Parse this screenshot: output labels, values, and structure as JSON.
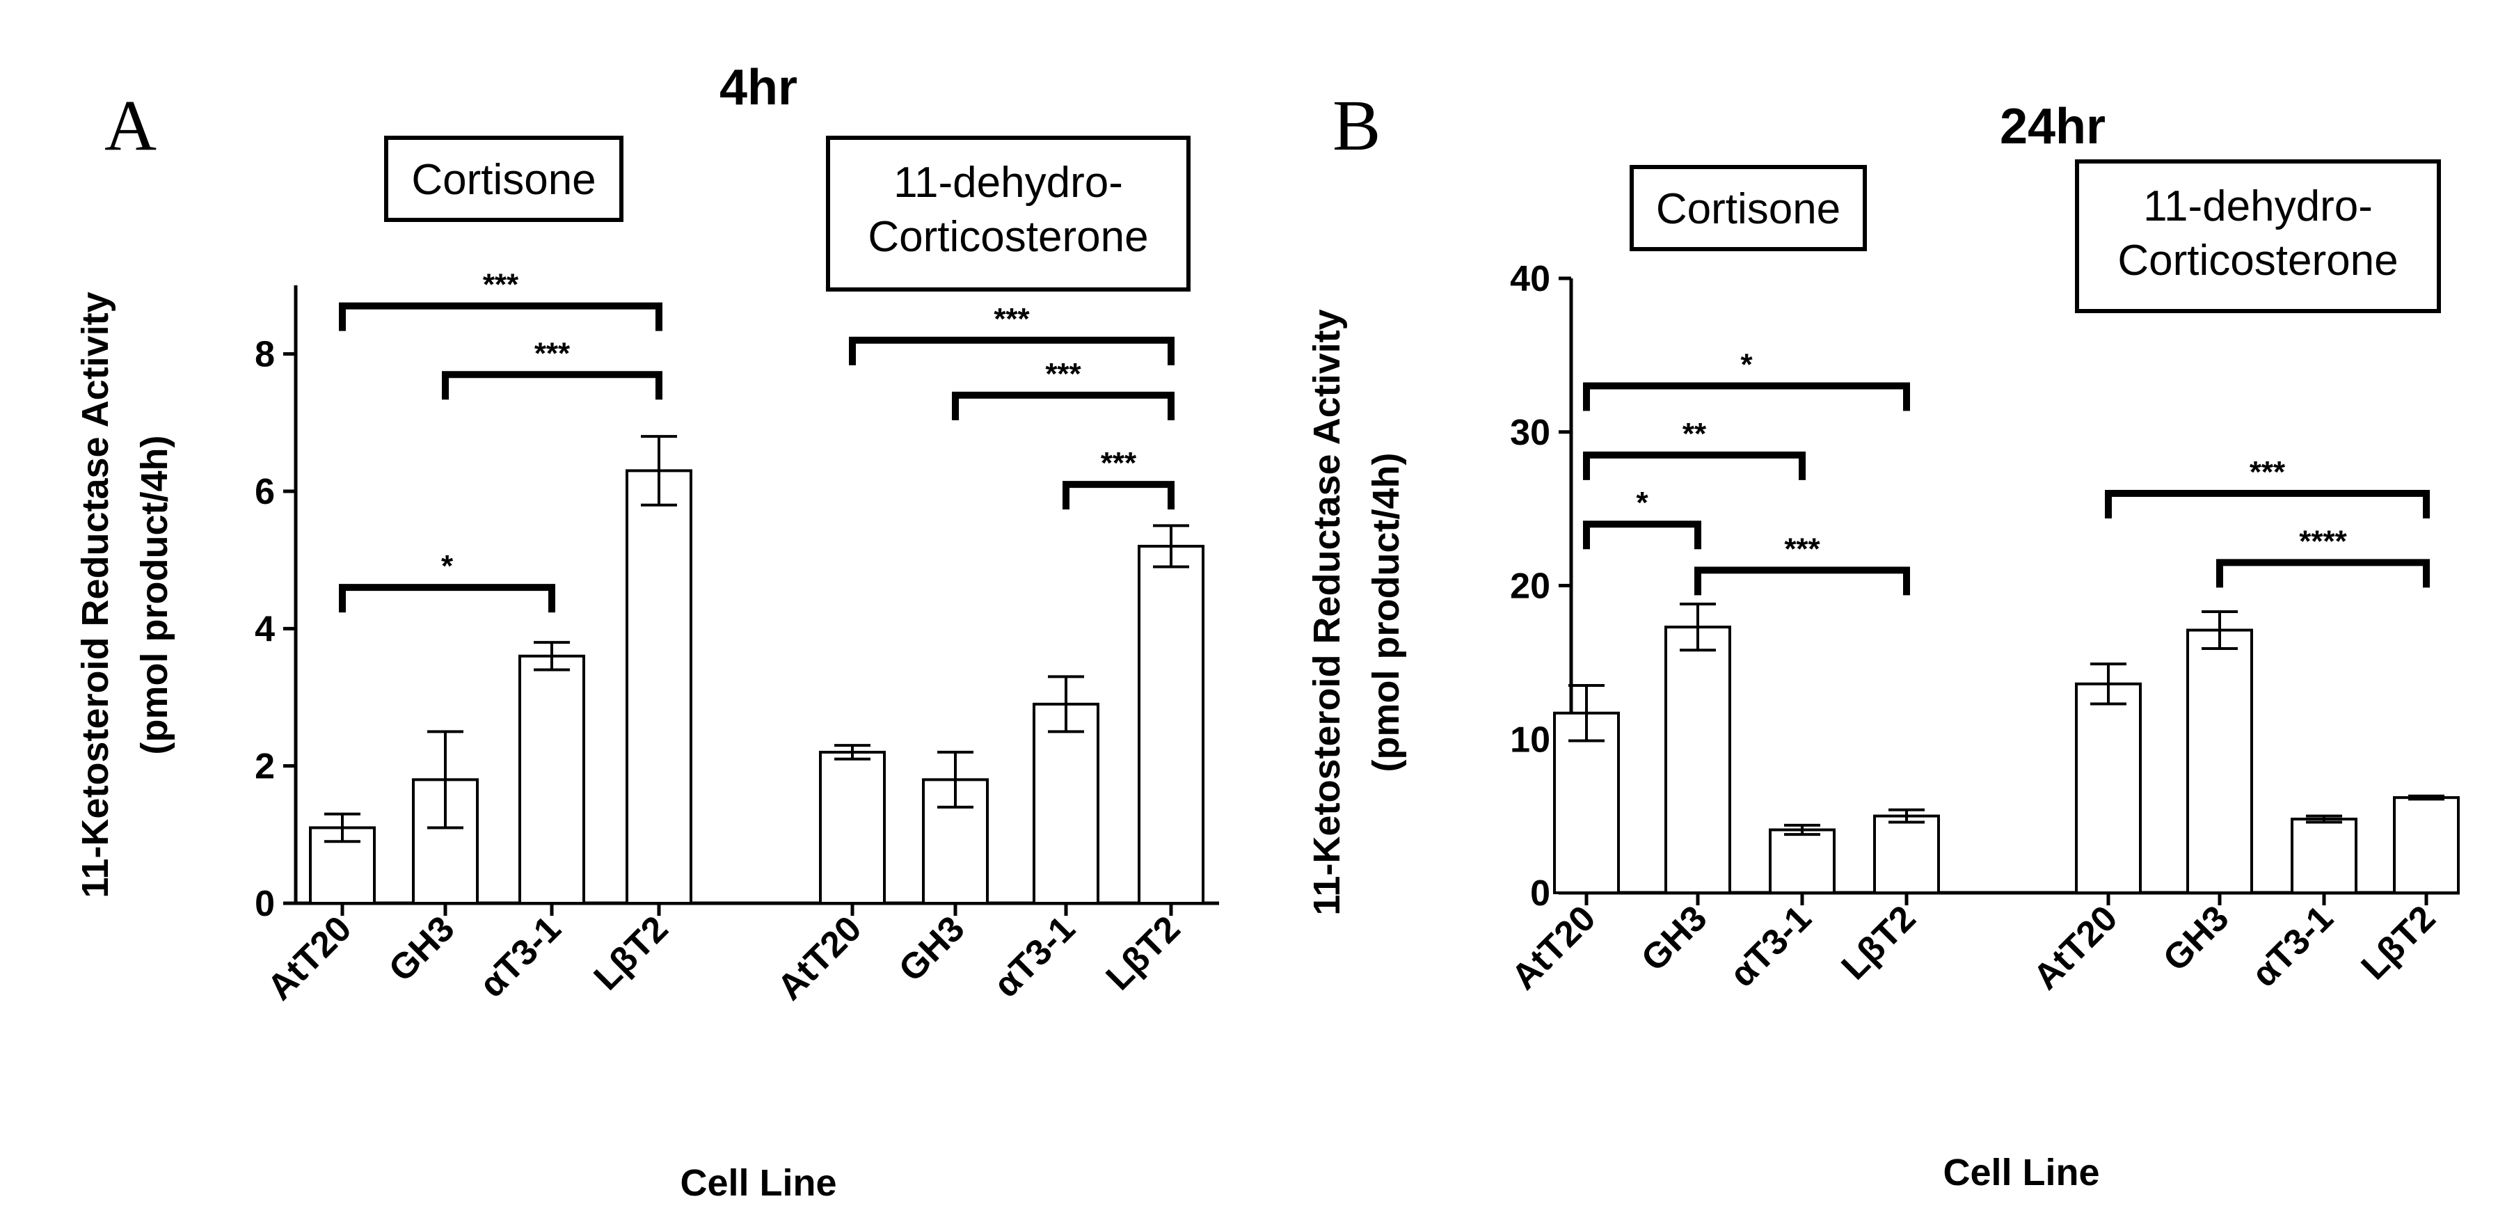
{
  "chart_data": [
    {
      "type": "bar",
      "panel": "A",
      "title": "4hr",
      "ylabel": "11-Ketosteroid Reductase Activity",
      "ylabel2": "(pmol product/4h)",
      "xlabel": "Cell Line",
      "ylim": [
        0,
        9
      ],
      "yticks": [
        0,
        2,
        4,
        6,
        8
      ],
      "groups": [
        {
          "label": "Cortisone",
          "categories": [
            "AtT20",
            "GH3",
            "αT3-1",
            "LβT2"
          ],
          "values": [
            1.1,
            1.8,
            3.6,
            6.3
          ],
          "errors": [
            0.2,
            0.7,
            0.2,
            0.5
          ]
        },
        {
          "label_lines": [
            "11-dehydro-",
            "Corticosterone"
          ],
          "categories": [
            "AtT20",
            "GH3",
            "αT3-1",
            "LβT2"
          ],
          "values": [
            2.2,
            1.8,
            2.9,
            5.2
          ],
          "errors": [
            0.1,
            0.4,
            0.4,
            0.3
          ]
        }
      ],
      "significance": [
        {
          "group": 0,
          "from": 0,
          "to": 3,
          "y": 8.7,
          "label": "***"
        },
        {
          "group": 0,
          "from": 1,
          "to": 3,
          "y": 7.7,
          "label": "***"
        },
        {
          "group": 0,
          "from": 0,
          "to": 2,
          "y": 4.6,
          "label": "*"
        },
        {
          "group": 1,
          "from": 0,
          "to": 3,
          "y": 8.2,
          "label": "***"
        },
        {
          "group": 1,
          "from": 1,
          "to": 3,
          "y": 7.4,
          "label": "***"
        },
        {
          "group": 1,
          "from": 2,
          "to": 3,
          "y": 6.1,
          "label": "***"
        }
      ]
    },
    {
      "type": "bar",
      "panel": "B",
      "title": "24hr",
      "ylabel": "11-Ketosteroid Reductase Activity",
      "ylabel2": "(pmol product/4h)",
      "xlabel": "Cell Line",
      "ylim": [
        0,
        40
      ],
      "yticks": [
        0,
        10,
        20,
        30,
        40
      ],
      "groups": [
        {
          "label": "Cortisone",
          "categories": [
            "AtT20",
            "GH3",
            "αT3-1",
            "LβT2"
          ],
          "values": [
            11.7,
            17.3,
            4.1,
            5.0
          ],
          "errors": [
            1.8,
            1.5,
            0.3,
            0.4
          ]
        },
        {
          "label_lines": [
            "11-dehydro-",
            "Corticosterone"
          ],
          "categories": [
            "AtT20",
            "GH3",
            "αT3-1",
            "LβT2"
          ],
          "values": [
            13.6,
            17.1,
            4.8,
            6.2
          ],
          "errors": [
            1.3,
            1.2,
            0.2,
            0.1
          ]
        }
      ],
      "significance": [
        {
          "group": 0,
          "from": 0,
          "to": 3,
          "y": 33,
          "label": "*"
        },
        {
          "group": 0,
          "from": 0,
          "to": 2,
          "y": 28.5,
          "label": "**"
        },
        {
          "group": 0,
          "from": 0,
          "to": 1,
          "y": 24,
          "label": "*"
        },
        {
          "group": 0,
          "from": 1,
          "to": 3,
          "y": 21,
          "label": "***"
        },
        {
          "group": 1,
          "from": 0,
          "to": 3,
          "y": 26,
          "label": "***"
        },
        {
          "group": 1,
          "from": 1,
          "to": 3,
          "y": 21.5,
          "label": "****"
        }
      ]
    }
  ]
}
